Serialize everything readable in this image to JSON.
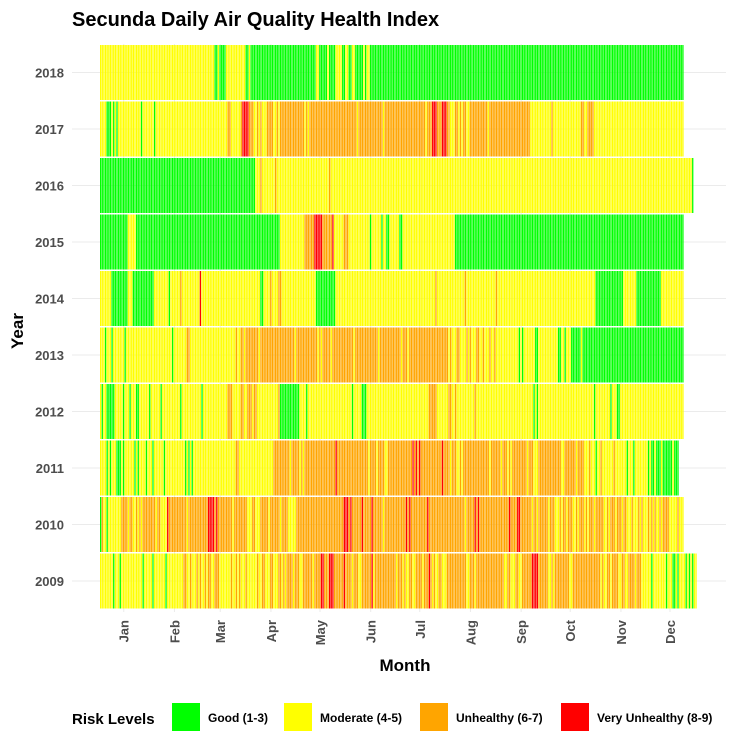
{
  "chart_data": {
    "type": "heatmap",
    "title": "Secunda Daily Air Quality Health Index",
    "xlabel": "Month",
    "ylabel": "Year",
    "years": [
      "2009",
      "2010",
      "2011",
      "2012",
      "2013",
      "2014",
      "2015",
      "2016",
      "2017",
      "2018"
    ],
    "months": [
      "Jan",
      "Feb",
      "Mar",
      "Apr",
      "May",
      "Jun",
      "Jul",
      "Aug",
      "Sep",
      "Oct",
      "Nov",
      "Dec"
    ],
    "legend": {
      "title": "Risk Levels",
      "position": "bottom",
      "items": [
        {
          "label": "Good (1-3)",
          "color": "#00ff00"
        },
        {
          "label": "Moderate (4-5)",
          "color": "#ffff00"
        },
        {
          "label": "Unhealthy (6-7)",
          "color": "#ffa500"
        },
        {
          "label": "Very Unhealthy (8-9)",
          "color": "#ff0000"
        }
      ]
    },
    "cell_unit": "day",
    "risk_codes": {
      "1": "Good (1-3)",
      "2": "Moderate (4-5)",
      "3": "Unhealthy (6-7)",
      "4": "Very Unhealthy (8-9)"
    },
    "daily_risk_by_year": {
      "2009": "222222221222122222222222221222221222222212222222222332232223232232332233322222223223232223222222322332223322233232333323332233333323333443334443333334333323332233333342333333333333323332322332233332333432322332223333333333332233323333333333333333322332223322333333444433333322323333333332233333333333333333232233233332233223333233322222212222222212221121222212121222211211",
      "2010": "132212222222233332332232323333333323322224333333333332333333333333444434333333333233333333222332223333323333332333322222333333333333333333333333333334443433333343333343333332333333333333343433333333334333333333333333333333323333343433333333333333333343333443333333233233333323332223233233322323332323332333332232333233323322232223232223232322323333222223222",
      "2011": "222212122211121222222121222212221222222122222222222212121222222222222222222222222223322222222222222222222233333333332333332323333333333333333333433333333333333333332333323333223333333333333334343433333333333334333323332232333333333333333323333332333232333333333233322233333333333333223333333233332223222122322222223222222212221222222221211211121111112111",
      "2012": "212211111222221222122211222222122222212222222222212222222222221222222222222222333222223322333233222222222222231111111111112222122222222222222222222222222212222211122222222222222222222222222222222222222333332222222332232222222222232222222222222222222222222222222222212122222222222222222222222222222222221222222222122211222222222222222222222222222222222222222",
      "2013": "222122212222222122222222222222222222222222221222222223322222222222222222222222222223223323333333323333333333333333333332333333333333323233333233333333333332333333333333332333333333333323332333333333333333333333333232223322223232223322322232232222222222222212122222221122222222222211221222111111211111111111111111111111111111111111111111111111111111111111111",
      "2014": "222222211111111112221111111111111222222222122222232222222222242222222222222222222222222222222222221122223222233222222222222222222222111111111111222222222222222222222222222222222222222222222222222222222222232222222222222222232222222222222222223222222222222222222222222222222222222222222222222222222222222111111111111111112222222211111111111111122222222222222",
      "2015": "111111111111111112222211111111111111111111111111111111111111111111111111111111111111111111111111111111111111112222222222222223333334444433333342222223332222222222222122222212211222222112222222222222222222222222222222211111111111111111111111111111111111111111111111111111111111111111111111111111111111111111111111111111111111111111111111111111111111111111111",
      "2016": "111111111111111111111111111111111111111111111111111111111111111111111111111111111111111111111112223222222223222222222222222222222222222222223222222222222222222222222222222222222222222222222222222222222222222222222222222222222222222222222222222222222222222222222222222222222222222222222222222222222222222222222222222222222222222222222222222222222222222222222222221",
      "2017": "222211121212222222222222212222222122222222222222222222222222222222222222222222332222223444433322323222333322323333333333333332323333333333333333333333333333323333333333333332333333333333333333333333323334443334443322233232332233333333333233333333333333333333333332222222222222322222222222222222332233332222222222222222222222222222222222222222222222222222222",
      "2018": "222222222222222222222222222222222222222222222222222222222222222222222211211112222222222221121111111111111111111111111111111111111111221111121111222211221122111112122111111111111111111111111111111111111111111111111111111111111111111111111111111111111111111111111111111111111111111111111111111111111111111111111111111111111111111111111111111111111111111111111"
    }
  }
}
